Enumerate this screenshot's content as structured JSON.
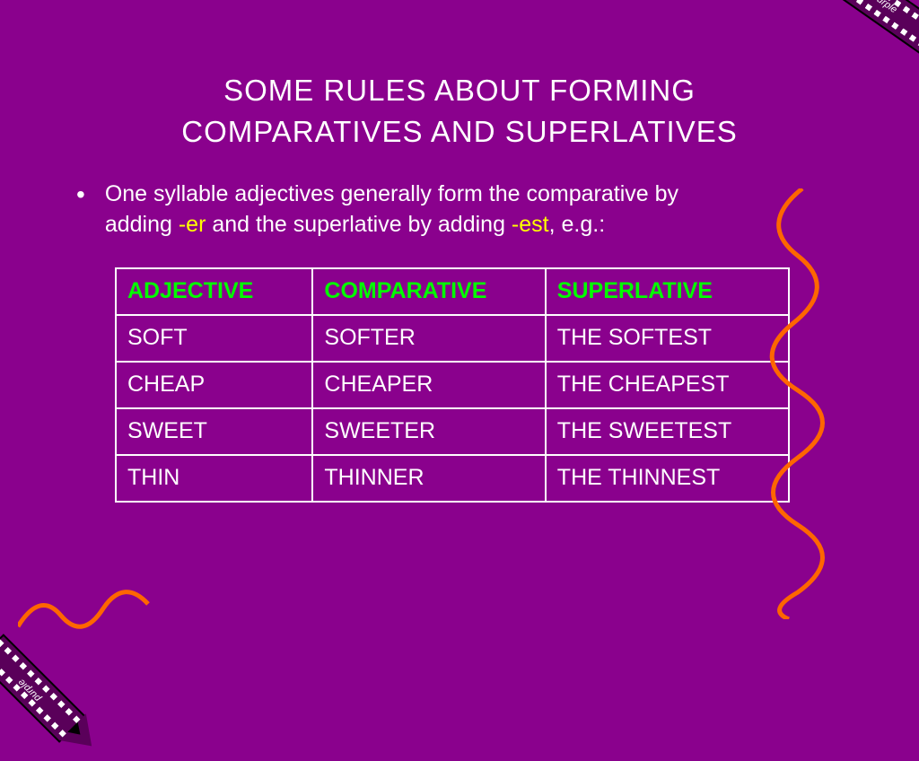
{
  "title_line1": "SOME RULES ABOUT FORMING",
  "title_line2": "COMPARATIVES AND SUPERLATIVES",
  "bullet_text_pre": "One syllable adjectives generally form the comparative by adding ",
  "bullet_hl1": "-er",
  "bullet_text_mid": " and the superlative by adding ",
  "bullet_hl2": "-est",
  "bullet_text_post": ", e.g.:",
  "table": {
    "headers": [
      "ADJECTIVE",
      "COMPARATIVE",
      "SUPERLATIVE"
    ],
    "rows": [
      [
        "SOFT",
        "SOFTER",
        "THE SOFTEST"
      ],
      [
        "CHEAP",
        "CHEAPER",
        "THE CHEAPEST"
      ],
      [
        "SWEET",
        "SWEETER",
        "THE SWEETEST"
      ],
      [
        "THIN",
        "THINNER",
        "THE THINNEST"
      ]
    ],
    "header_color": "#00ff00",
    "cell_color": "#ffffff",
    "border_color": "#ffffff",
    "font_size": 25,
    "col_widths": [
      "220px",
      "260px",
      "272px"
    ]
  },
  "colors": {
    "background": "#8a018d",
    "text": "#ffffff",
    "highlight": "#ffff00",
    "squiggle": "#ff6600",
    "crayon": "#5a005a"
  },
  "crayon_label": "purple",
  "title_fontsize": 33,
  "body_fontsize": 25
}
